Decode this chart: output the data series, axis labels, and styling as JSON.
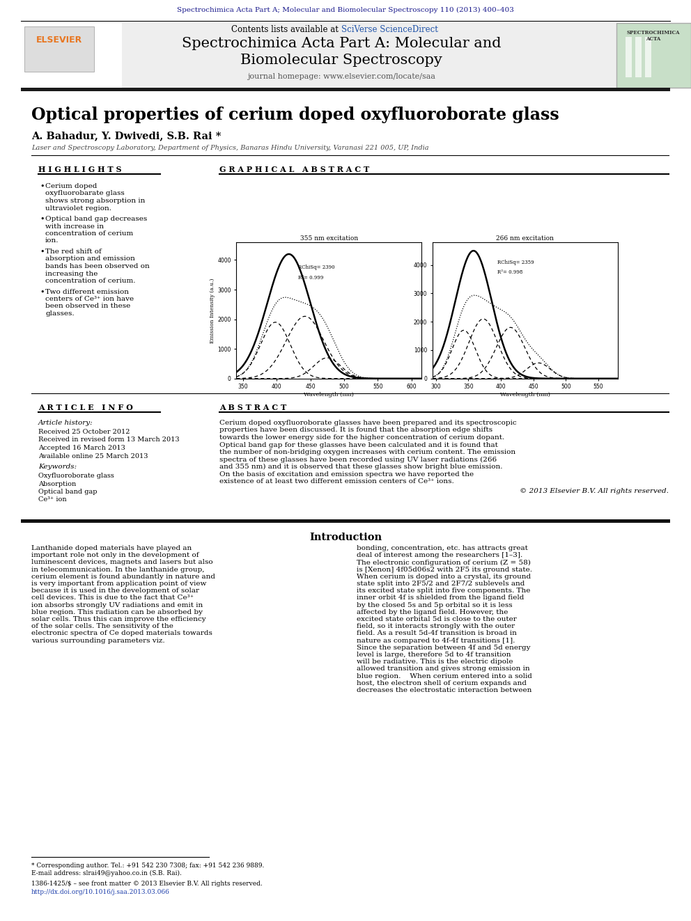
{
  "journal_header_text": "Spectrochimica Acta Part A; Molecular and Biomolecular Spectroscopy 110 (2013) 400–403",
  "journal_header_color": "#1a1a8c",
  "sciverse_color": "#2255aa",
  "elsevier_color": "#e87722",
  "article_title": "Optical properties of cerium doped oxyfluoroborate glass",
  "authors": "A. Bahadur, Y. Dwivedi, S.B. Rai",
  "affiliation": "Laser and Spectroscopy Laboratory, Department of Physics, Banaras Hindu University, Varanasi 221 005, UP, India",
  "highlights_title": "H I G H L I G H T S",
  "highlights": [
    "Cerium doped oxyfluorobarate glass shows strong absorption in ultraviolet region.",
    "Optical band gap decreases with increase in concentration of cerium ion.",
    "The red shift of absorption and emission bands has been observed on increasing the concentration of cerium.",
    "Two different emission centers of Ce³⁺ ion have been observed in these glasses."
  ],
  "graphical_abstract_title": "G R A P H I C A L   A B S T R A C T",
  "article_info_title": "A R T I C L E   I N F O",
  "abstract_title": "A B S T R A C T",
  "article_history_label": "Article history:",
  "received": "Received 25 October 2012",
  "revised": "Received in revised form 13 March 2013",
  "accepted": "Accepted 16 March 2013",
  "online": "Available online 25 March 2013",
  "keywords_label": "Keywords:",
  "keywords": [
    "Oxyfluoroborate glass",
    "Absorption",
    "Optical band gap",
    "Ce³⁺ ion"
  ],
  "abstract_text": "Cerium doped oxyfluoroborate glasses have been prepared and its spectroscopic properties have been discussed. It is found that the absorption edge shifts towards the lower energy side for the higher concentration of cerium dopant. Optical band gap for these glasses have been calculated and it is found that the number of non-bridging oxygen increases with cerium content. The emission spectra of these glasses have been recorded using UV laser radiations (266 and 355 nm) and it is observed that these glasses show bright blue emission. On the basis of excitation and emission spectra we have reported the existence of at least two different emission centers of Ce³⁺ ions.",
  "copyright": "© 2013 Elsevier B.V. All rights reserved.",
  "intro_title": "Introduction",
  "intro_col1": "Lanthanide doped materials have played an important role not only in the development of luminescent devices, magnets and lasers but also in telecommunication. In the lanthanide group, cerium element is found abundantly in nature and is very important from application point of view because it is used in the development of solar cell devices. This is due to the fact that Ce³⁺ ion absorbs strongly UV radiations and emit in blue region. This radiation can be absorbed by solar cells. Thus this can improve the efficiency of the solar cells. The sensitivity of the electronic spectra of Ce doped materials towards various surrounding parameters viz.",
  "intro_col2": "bonding, concentration, etc. has attracts great deal of interest among the researchers [1–3].    The electronic configuration of cerium (Z = 58) is [Xenon] 4f05d06s2 with 2F5 its ground state. When cerium is doped into a crystal, its ground state split into 2F5/2 and 2F7/2 sublevels and its excited state split into five components. The inner orbit 4f is shielded from the ligand field by the closed 5s and 5p orbital so it is less affected by the ligand field. However, the excited state orbital 5d is close to the outer field, so it interacts strongly with the outer field. As a result 5d-4f transition is broad in nature as compared to 4f-4f transitions [1]. Since the separation between 4f and 5d energy level is large, therefore 5d to 4f transition will be radiative. This is the electric dipole allowed transition and gives strong emission in blue region.    When cerium entered into a solid host, the electron shell of cerium expands and decreases the electrostatic interaction between",
  "footnote_star": "* Corresponding author. Tel.: +91 542 230 7308; fax: +91 542 236 9889.",
  "footnote_email": "E-mail address: slrai49@yahoo.co.in (S.B. Rai).",
  "footnote_issn": "1386-1425/$ – see front matter © 2013 Elsevier B.V. All rights reserved.",
  "footnote_doi": "http://dx.doi.org/10.1016/j.saa.2013.03.066",
  "background_color": "#ffffff",
  "thick_bar_color": "#1a1a1a"
}
